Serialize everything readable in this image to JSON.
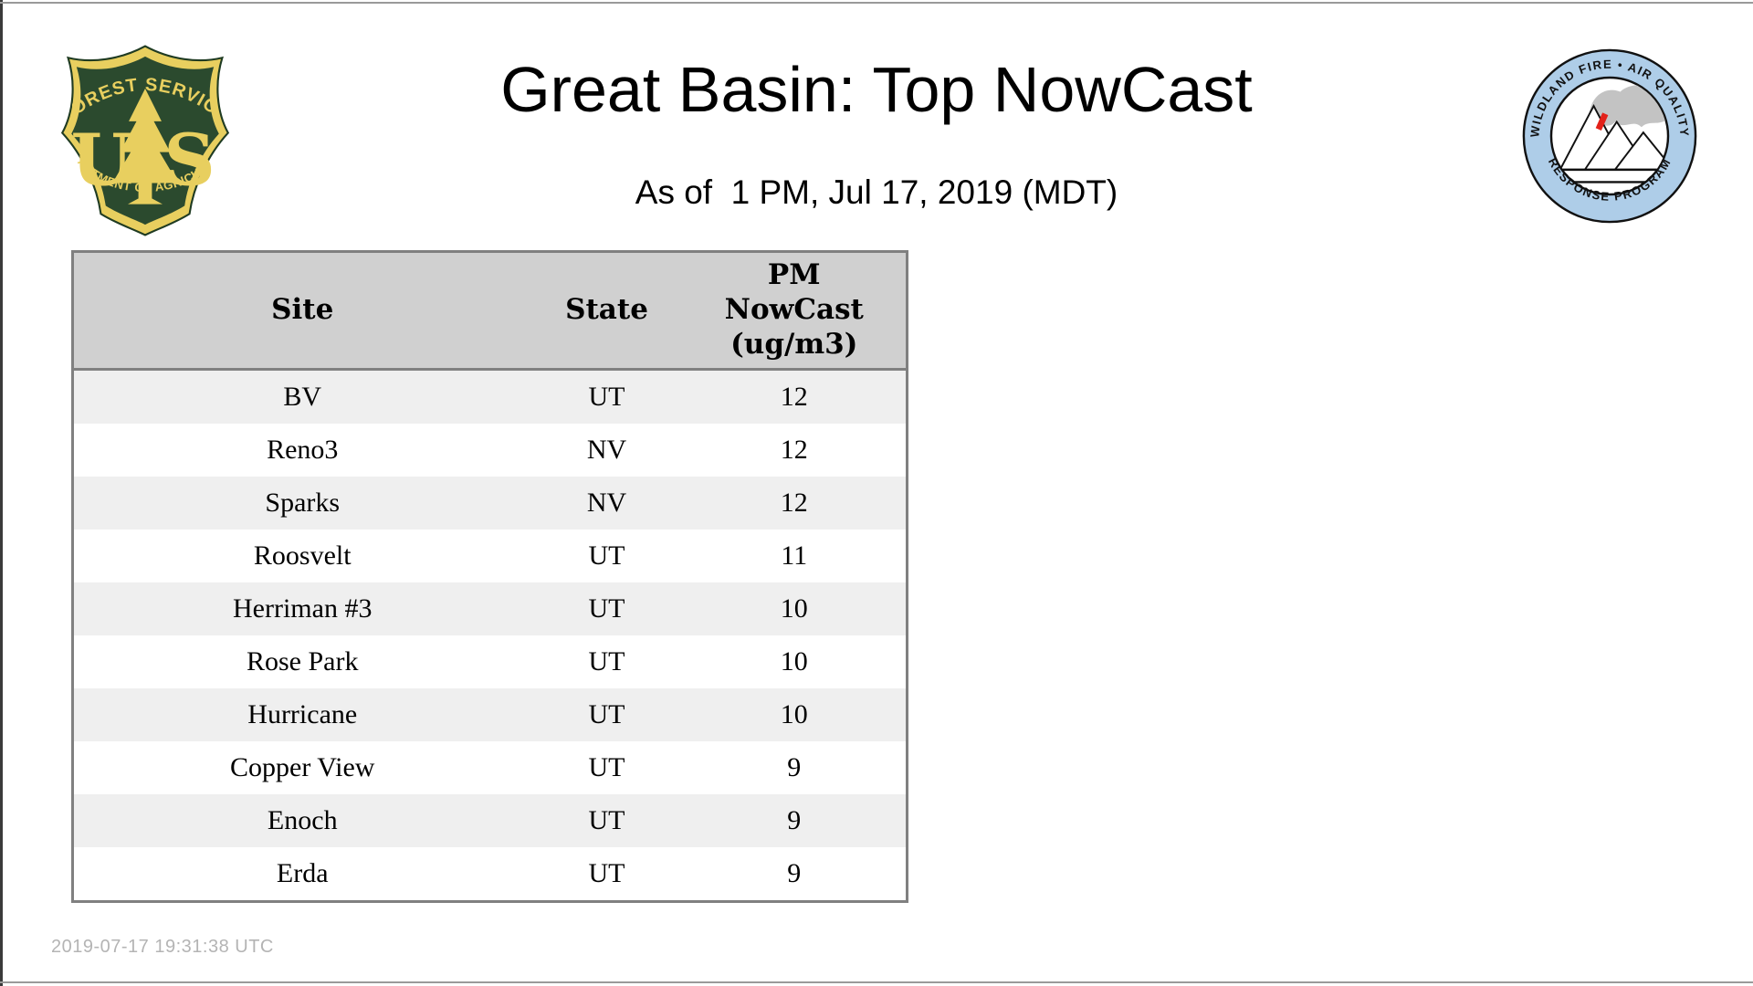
{
  "page": {
    "title": "Great Basin: Top NowCast",
    "subtitle": "As of  1 PM, Jul 17, 2019 (MDT)",
    "footer_timestamp": "2019-07-17 19:31:38 UTC"
  },
  "logos": {
    "usfs": {
      "label": "US Forest Service shield",
      "arc_top": "FOREST SERVICE",
      "letter_u": "U",
      "letter_s": "S",
      "arc_bottom": "DEPARTMENT OF AGRICULTURE",
      "green": "#2b4a2e",
      "gold": "#e8cf5f"
    },
    "wfaqrp": {
      "label": "Wildland Fire Air Quality Response Program badge",
      "arc_top": "WILDLAND FIRE • AIR QUALITY",
      "arc_bottom": "RESPONSE PROGRAM",
      "ring_blue": "#aecde8",
      "smoke_gray": "#c3c3c3",
      "flame_red": "#e32119"
    }
  },
  "table": {
    "header": {
      "site": "Site",
      "state": "State",
      "pm_lines": [
        "PM",
        "NowCast",
        "(ug/m3)"
      ]
    },
    "header_bg": "#d0d0d0",
    "row_alt_bg": "#efefef",
    "border_color": "#808080"
  },
  "chart_data": {
    "type": "table",
    "title": "Great Basin: Top NowCast",
    "as_of": "As of  1 PM, Jul 17, 2019 (MDT)",
    "columns": [
      "Site",
      "State",
      "PM NowCast (ug/m3)"
    ],
    "rows": [
      {
        "site": "BV",
        "state": "UT",
        "nowcast": "12"
      },
      {
        "site": "Reno3",
        "state": "NV",
        "nowcast": "12"
      },
      {
        "site": "Sparks",
        "state": "NV",
        "nowcast": "12"
      },
      {
        "site": "Roosvelt",
        "state": "UT",
        "nowcast": "11"
      },
      {
        "site": "Herriman #3",
        "state": "UT",
        "nowcast": "10"
      },
      {
        "site": "Rose Park",
        "state": "UT",
        "nowcast": "10"
      },
      {
        "site": "Hurricane",
        "state": "UT",
        "nowcast": "10"
      },
      {
        "site": "Copper View",
        "state": "UT",
        "nowcast": "9"
      },
      {
        "site": "Enoch",
        "state": "UT",
        "nowcast": "9"
      },
      {
        "site": "Erda",
        "state": "UT",
        "nowcast": "9"
      }
    ]
  }
}
